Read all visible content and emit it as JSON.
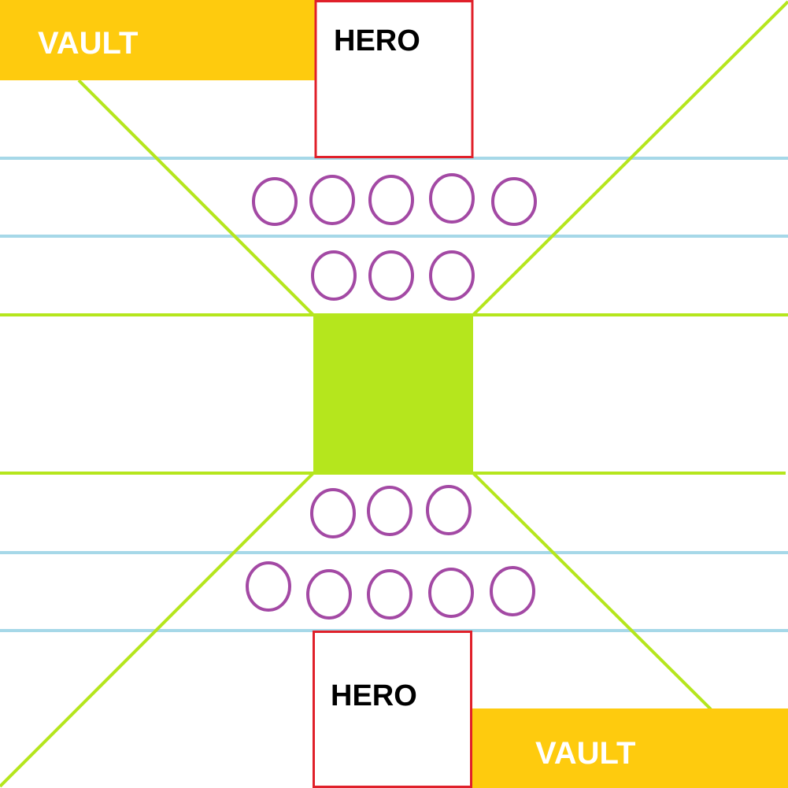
{
  "vault_top": {
    "label": "VAULT"
  },
  "vault_bottom": {
    "label": "VAULT"
  },
  "hero_top": {
    "label": "HERO"
  },
  "hero_bottom": {
    "label": "HERO"
  },
  "colors": {
    "vault": "#fecb0e",
    "vault_text": "#ffffff",
    "hero_border": "#e0202a",
    "hero_text": "#000000",
    "center_block": "#b5e61d",
    "diagonal_lines": "#b5e61d",
    "lane_lines": "#a6d8e8",
    "slot_circles": "#a349a4",
    "background": "#ffffff"
  },
  "slots": {
    "row_1_count": 5,
    "row_2_count": 3,
    "row_3_count": 3,
    "row_4_count": 5
  }
}
